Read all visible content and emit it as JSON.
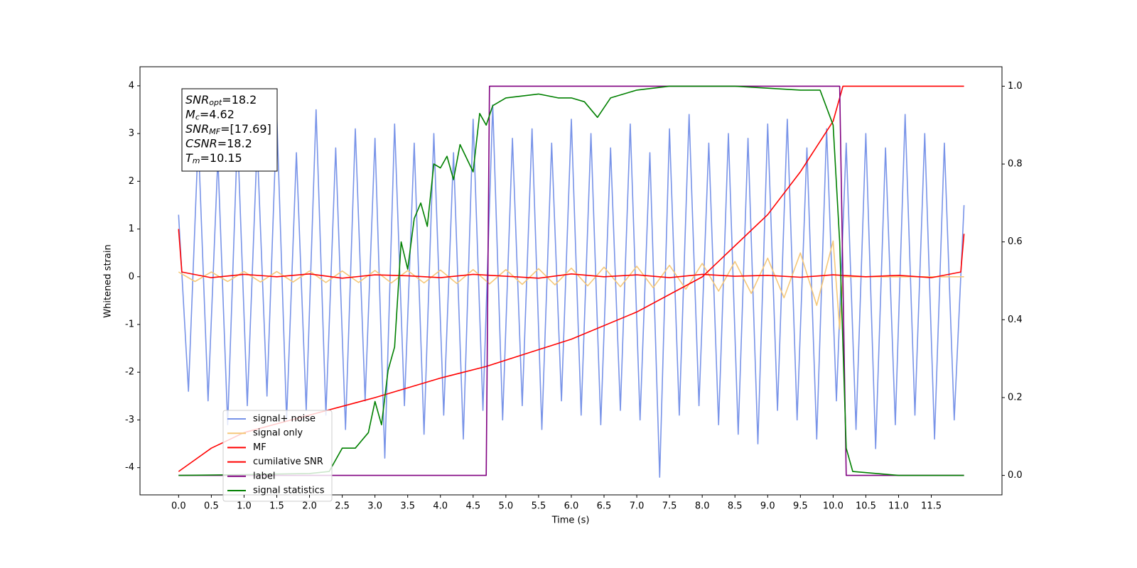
{
  "chart_data": {
    "type": "line",
    "xlabel": "Time (s)",
    "ylabel": "Whitened strain",
    "xlim": [
      -0.59,
      12.58
    ],
    "ylim": [
      -4.57,
      4.4
    ],
    "y2lim": [
      -0.05,
      1.05
    ],
    "xticks": [
      {
        "value": 0,
        "label": "0.0"
      },
      0.5,
      {
        "value": 1,
        "label": "1.0"
      },
      1.5,
      {
        "value": 2,
        "label": "2.0"
      },
      2.5,
      {
        "value": 3,
        "label": "3.0"
      },
      3.5,
      {
        "value": 4,
        "label": "4.0"
      },
      4.5,
      {
        "value": 5,
        "label": "5.0"
      },
      5.5,
      {
        "value": 6,
        "label": "6.0"
      },
      6.5,
      {
        "value": 7,
        "label": "7.0"
      },
      7.5,
      {
        "value": 8,
        "label": "8.0"
      },
      8.5,
      {
        "value": 9,
        "label": "9.0"
      },
      9.5,
      {
        "value": 10,
        "label": "10.0"
      },
      10.5,
      {
        "value": 11,
        "label": "11.0"
      },
      11.5
    ],
    "yticks": [
      -4,
      -3,
      -2,
      -1,
      0,
      1,
      2,
      3,
      4
    ],
    "y2ticks": [
      {
        "value": 0,
        "label": "0.0"
      },
      0.2,
      0.4,
      0.6,
      0.8,
      {
        "value": 1,
        "label": "1.0"
      }
    ],
    "legend": "lower left",
    "annotations": [
      {
        "label": "SNR",
        "subscript": "opt",
        "text": "=18.2"
      },
      {
        "label": "M",
        "subscript": "c",
        "text": "=4.62"
      },
      {
        "label": "SNR",
        "subscript": "MF",
        "text": "=[17.69]"
      },
      {
        "label": "CSNR",
        "text": "=18.2"
      },
      {
        "label": "T",
        "subscript": "m",
        "text": "=10.15"
      }
    ],
    "series": [
      {
        "name": "signal+ noise",
        "color": "#7893e8",
        "x": [
          0,
          0.15,
          0.3,
          0.45,
          0.6,
          0.75,
          0.9,
          1.05,
          1.2,
          1.35,
          1.5,
          1.65,
          1.8,
          1.95,
          2.1,
          2.25,
          2.4,
          2.55,
          2.7,
          2.85,
          3.0,
          3.15,
          3.3,
          3.45,
          3.6,
          3.75,
          3.9,
          4.05,
          4.2,
          4.35,
          4.5,
          4.65,
          4.8,
          4.95,
          5.1,
          5.25,
          5.4,
          5.55,
          5.7,
          5.85,
          6.0,
          6.15,
          6.3,
          6.45,
          6.6,
          6.75,
          6.9,
          7.05,
          7.2,
          7.35,
          7.5,
          7.65,
          7.8,
          7.95,
          8.1,
          8.25,
          8.4,
          8.55,
          8.7,
          8.85,
          9.0,
          9.15,
          9.3,
          9.45,
          9.6,
          9.75,
          9.9,
          10.05,
          10.2,
          10.35,
          10.5,
          10.65,
          10.8,
          10.95,
          11.1,
          11.25,
          11.4,
          11.55,
          11.7,
          11.85,
          12.0
        ],
        "values": [
          1.3,
          -2.4,
          2.9,
          -2.6,
          2.5,
          -3.1,
          3.0,
          -2.7,
          2.8,
          -2.5,
          3.4,
          -3.0,
          2.6,
          -2.8,
          3.5,
          -2.9,
          2.7,
          -3.2,
          3.1,
          -2.6,
          2.9,
          -3.8,
          3.2,
          -2.7,
          2.8,
          -3.3,
          3.0,
          -2.9,
          2.6,
          -3.4,
          3.3,
          -2.8,
          3.6,
          -3.0,
          2.9,
          -2.7,
          3.1,
          -3.2,
          2.8,
          -2.6,
          3.3,
          -2.9,
          3.0,
          -3.1,
          2.7,
          -2.8,
          3.2,
          -3.0,
          2.6,
          -4.2,
          3.1,
          -2.9,
          3.4,
          -2.7,
          2.8,
          -3.1,
          3.0,
          -3.3,
          2.9,
          -3.5,
          3.2,
          -2.8,
          3.3,
          -3.0,
          2.7,
          -3.4,
          3.1,
          -2.6,
          2.8,
          -3.2,
          3.0,
          -3.6,
          2.7,
          -3.1,
          3.4,
          -2.9,
          3.0,
          -3.4,
          2.8,
          -3.0,
          1.5
        ]
      },
      {
        "name": "signal only",
        "color": "#f5c87a",
        "x": [
          0,
          0.25,
          0.5,
          0.75,
          1.0,
          1.25,
          1.5,
          1.75,
          2.0,
          2.25,
          2.5,
          2.75,
          3.0,
          3.25,
          3.5,
          3.75,
          4.0,
          4.25,
          4.5,
          4.75,
          5.0,
          5.25,
          5.5,
          5.75,
          6.0,
          6.25,
          6.5,
          6.75,
          7.0,
          7.25,
          7.5,
          7.75,
          8.0,
          8.25,
          8.5,
          8.75,
          9.0,
          9.25,
          9.5,
          9.75,
          10.0,
          10.1,
          10.15,
          12.0
        ],
        "values": [
          0.1,
          -0.1,
          0.1,
          -0.1,
          0.11,
          -0.11,
          0.11,
          -0.11,
          0.12,
          -0.12,
          0.12,
          -0.12,
          0.13,
          -0.13,
          0.13,
          -0.13,
          0.14,
          -0.14,
          0.15,
          -0.15,
          0.15,
          -0.16,
          0.17,
          -0.17,
          0.18,
          -0.19,
          0.2,
          -0.21,
          0.22,
          -0.23,
          0.24,
          -0.26,
          0.28,
          -0.3,
          0.32,
          -0.35,
          0.39,
          -0.44,
          0.5,
          -0.6,
          0.75,
          -1.1,
          0,
          0
        ]
      },
      {
        "name": "MF",
        "color": "#ff0000",
        "x": [
          0,
          0.05,
          0.5,
          1.0,
          1.5,
          2.0,
          2.5,
          3.0,
          3.5,
          4.0,
          4.5,
          5.0,
          5.5,
          6.0,
          6.5,
          7.0,
          7.5,
          8.0,
          8.5,
          9.0,
          9.5,
          10.0,
          10.5,
          11.0,
          11.5,
          11.95,
          12.0
        ],
        "values": [
          1.0,
          0.1,
          -0.02,
          0.05,
          0.0,
          0.06,
          -0.03,
          0.04,
          0.02,
          -0.02,
          0.05,
          0.01,
          -0.03,
          0.06,
          0.0,
          0.04,
          -0.02,
          0.05,
          0.01,
          0.03,
          -0.01,
          0.04,
          0.0,
          0.03,
          -0.02,
          0.1,
          0.9
        ]
      },
      {
        "name": "cumilative SNR",
        "color": "#ff0000",
        "axis": "y2",
        "x": [
          0,
          0.5,
          1.0,
          2.0,
          3.0,
          4.0,
          4.7,
          6.0,
          7.0,
          8.0,
          9.0,
          9.5,
          10.0,
          10.15,
          12.0
        ],
        "values": [
          0.01,
          0.07,
          0.11,
          0.155,
          0.2,
          0.25,
          0.28,
          0.35,
          0.42,
          0.51,
          0.67,
          0.78,
          0.91,
          1.0,
          1.0
        ]
      },
      {
        "name": "label",
        "color": "#800080",
        "axis": "y2",
        "x": [
          0,
          4.7,
          4.75,
          10.1,
          10.2,
          12.0
        ],
        "values": [
          0,
          0,
          1,
          1,
          0,
          0
        ]
      },
      {
        "name": "signal statistics",
        "color": "#008000",
        "axis": "y2",
        "x": [
          0,
          1.0,
          2.0,
          2.3,
          2.5,
          2.7,
          2.9,
          3.0,
          3.1,
          3.2,
          3.3,
          3.4,
          3.5,
          3.6,
          3.7,
          3.8,
          3.9,
          4.0,
          4.1,
          4.2,
          4.3,
          4.5,
          4.6,
          4.7,
          4.8,
          5.0,
          5.5,
          5.8,
          6.0,
          6.2,
          6.4,
          6.6,
          7.0,
          7.5,
          8.5,
          9.5,
          9.8,
          10.0,
          10.1,
          10.2,
          10.3,
          11.0,
          12.0
        ],
        "values": [
          0,
          0.002,
          0.005,
          0.01,
          0.07,
          0.07,
          0.11,
          0.19,
          0.13,
          0.27,
          0.33,
          0.6,
          0.53,
          0.66,
          0.7,
          0.64,
          0.8,
          0.79,
          0.82,
          0.76,
          0.85,
          0.78,
          0.93,
          0.9,
          0.95,
          0.97,
          0.98,
          0.97,
          0.97,
          0.96,
          0.92,
          0.97,
          0.99,
          1.0,
          1.0,
          0.99,
          0.99,
          0.9,
          0.6,
          0.07,
          0.01,
          0,
          0
        ]
      }
    ]
  }
}
